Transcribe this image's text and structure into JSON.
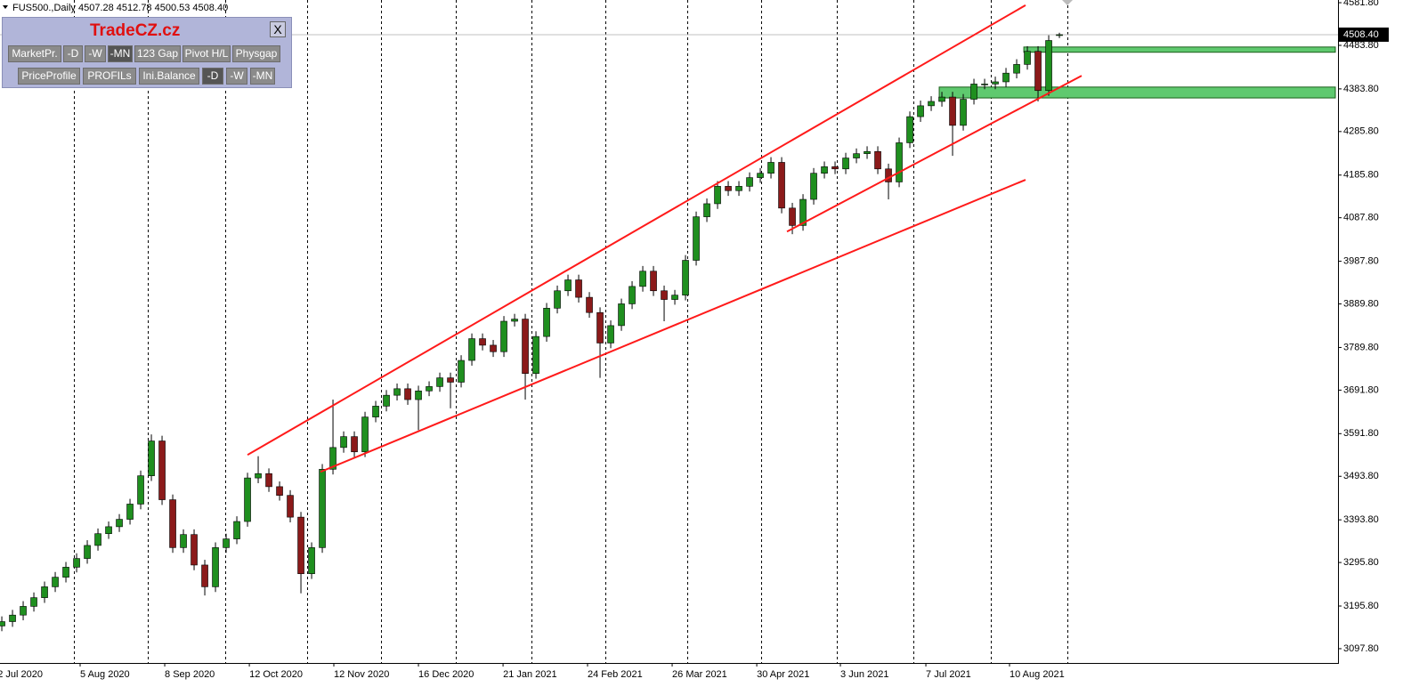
{
  "chart_data": {
    "type": "candlestick",
    "header": "FUS500.,Daily 4507.28 4512.78 4500.53 4508.40",
    "up_color": "#1f8f1f",
    "down_color": "#8b1a1a",
    "x": [
      0,
      1,
      2,
      3,
      4,
      5,
      6,
      7,
      8,
      9,
      10,
      11,
      12,
      13,
      14,
      15,
      16,
      17,
      18,
      19,
      20,
      21,
      22,
      23,
      24,
      25,
      26,
      27,
      28,
      29,
      30,
      31,
      32,
      33,
      34,
      35,
      36,
      37,
      38,
      39,
      40,
      41,
      42,
      43,
      44,
      45,
      46,
      47,
      48,
      49,
      50,
      51,
      52,
      53,
      54,
      55,
      56,
      57,
      58,
      59,
      60,
      61,
      62,
      63,
      64,
      65,
      66,
      67,
      68,
      69,
      70,
      71,
      72,
      73,
      74,
      75,
      76,
      77,
      78,
      79,
      80,
      81,
      82,
      83,
      84,
      85,
      86,
      87,
      88,
      89,
      90,
      91,
      92,
      93,
      94,
      95,
      96,
      97,
      98,
      99
    ],
    "open": [
      3150,
      3160,
      3175,
      3195,
      3215,
      3240,
      3262,
      3285,
      3305,
      3335,
      3362,
      3378,
      3395,
      3430,
      3495,
      3575,
      3440,
      3330,
      3360,
      3290,
      3240,
      3330,
      3350,
      3390,
      3490,
      3500,
      3470,
      3450,
      3400,
      3270,
      3330,
      3510,
      3560,
      3585,
      3550,
      3630,
      3655,
      3680,
      3695,
      3670,
      3690,
      3700,
      3720,
      3710,
      3760,
      3810,
      3795,
      3780,
      3850,
      3855,
      3730,
      3815,
      3880,
      3920,
      3945,
      3905,
      3870,
      3800,
      3840,
      3890,
      3930,
      3965,
      3920,
      3900,
      3910,
      3990,
      4090,
      4120,
      4160,
      4150,
      4160,
      4180,
      4190,
      4215,
      4110,
      4070,
      4130,
      4190,
      4205,
      4200,
      4225,
      4235,
      4240,
      4200,
      4170,
      4260,
      4320,
      4345,
      4355,
      4365,
      4300,
      4360,
      4395,
      4395,
      4400,
      4420,
      4440,
      4470,
      4380,
      4507.28
    ],
    "high": [
      3172,
      3187,
      3207,
      3227,
      3252,
      3274,
      3297,
      3317,
      3347,
      3374,
      3390,
      3407,
      3442,
      3507,
      3590,
      3587,
      3452,
      3372,
      3372,
      3302,
      3342,
      3362,
      3402,
      3502,
      3540,
      3512,
      3482,
      3462,
      3412,
      3342,
      3522,
      3670,
      3597,
      3597,
      3642,
      3667,
      3692,
      3707,
      3707,
      3702,
      3712,
      3732,
      3732,
      3772,
      3822,
      3822,
      3807,
      3862,
      3867,
      3867,
      3827,
      3892,
      3932,
      3957,
      3957,
      3917,
      3882,
      3852,
      3902,
      3942,
      3977,
      3977,
      3932,
      3922,
      4002,
      4102,
      4132,
      4172,
      4172,
      4172,
      4192,
      4202,
      4227,
      4227,
      4122,
      4142,
      4202,
      4217,
      4217,
      4237,
      4247,
      4252,
      4252,
      4212,
      4272,
      4332,
      4357,
      4367,
      4377,
      4377,
      4372,
      4407,
      4407,
      4412,
      4432,
      4452,
      4482,
      4482,
      4507,
      4512.78
    ],
    "low": [
      3138,
      3148,
      3163,
      3183,
      3203,
      3228,
      3250,
      3273,
      3293,
      3323,
      3350,
      3366,
      3383,
      3418,
      3483,
      3428,
      3318,
      3318,
      3278,
      3220,
      3228,
      3318,
      3338,
      3378,
      3478,
      3458,
      3438,
      3388,
      3225,
      3258,
      3318,
      3498,
      3548,
      3538,
      3538,
      3618,
      3643,
      3668,
      3658,
      3600,
      3678,
      3688,
      3650,
      3698,
      3748,
      3783,
      3768,
      3768,
      3838,
      3670,
      3718,
      3803,
      3868,
      3908,
      3893,
      3858,
      3720,
      3788,
      3828,
      3878,
      3918,
      3908,
      3850,
      3888,
      3898,
      3978,
      4078,
      4108,
      4138,
      4138,
      4148,
      4168,
      4178,
      4098,
      4050,
      4058,
      4118,
      4178,
      4188,
      4188,
      4213,
      4223,
      4188,
      4130,
      4158,
      4248,
      4308,
      4333,
      4343,
      4230,
      4288,
      4348,
      4383,
      4383,
      4388,
      4408,
      4428,
      4355,
      4368,
      4500.53
    ],
    "close": [
      3160,
      3175,
      3195,
      3215,
      3240,
      3262,
      3285,
      3305,
      3335,
      3362,
      3378,
      3395,
      3430,
      3495,
      3575,
      3440,
      3330,
      3360,
      3290,
      3240,
      3330,
      3350,
      3390,
      3490,
      3500,
      3470,
      3450,
      3400,
      3270,
      3330,
      3510,
      3560,
      3585,
      3550,
      3630,
      3655,
      3680,
      3695,
      3670,
      3690,
      3700,
      3720,
      3710,
      3760,
      3810,
      3795,
      3780,
      3850,
      3855,
      3730,
      3815,
      3880,
      3920,
      3945,
      3905,
      3870,
      3800,
      3840,
      3890,
      3930,
      3965,
      3920,
      3900,
      3910,
      3990,
      4090,
      4120,
      4160,
      4150,
      4160,
      4180,
      4190,
      4215,
      4110,
      4070,
      4130,
      4190,
      4205,
      4200,
      4225,
      4235,
      4240,
      4200,
      4170,
      4260,
      4320,
      4345,
      4355,
      4365,
      4300,
      4360,
      4395,
      4395,
      4400,
      4420,
      4440,
      4470,
      4380,
      4495,
      4508.4
    ],
    "xlim": [
      -0.17,
      125.08
    ],
    "ylim": [
      3065,
      4588
    ],
    "xticks": [
      {
        "value": -0.4,
        "label": "2 Jul 2020"
      },
      {
        "value": 7.33,
        "label": "5 Aug 2020"
      },
      {
        "value": 15.25,
        "label": "8 Sep 2020"
      },
      {
        "value": 23.17,
        "label": "12 Oct 2020"
      },
      {
        "value": 31.08,
        "label": "12 Nov 2020"
      },
      {
        "value": 39,
        "label": "16 Dec 2020"
      },
      {
        "value": 46.92,
        "label": "21 Jan 2021"
      },
      {
        "value": 54.83,
        "label": "24 Feb 2021"
      },
      {
        "value": 62.75,
        "label": "26 Mar 2021"
      },
      {
        "value": 70.67,
        "label": "30 Apr 2021"
      },
      {
        "value": 78.5,
        "label": "3 Jun 2021"
      },
      {
        "value": 86.5,
        "label": "7 Jul 2021"
      },
      {
        "value": 94.33,
        "label": "10 Aug 2021"
      }
    ],
    "yticks": [
      {
        "value": 4581.8,
        "label": "4581.80"
      },
      {
        "value": 4483.8,
        "label": "4483.80"
      },
      {
        "value": 4383.8,
        "label": "4383.80"
      },
      {
        "value": 4285.8,
        "label": "4285.80"
      },
      {
        "value": 4185.8,
        "label": "4185.80"
      },
      {
        "value": 4087.8,
        "label": "4087.80"
      },
      {
        "value": 3987.8,
        "label": "3987.80"
      },
      {
        "value": 3889.8,
        "label": "3889.80"
      },
      {
        "value": 3789.8,
        "label": "3789.80"
      },
      {
        "value": 3691.8,
        "label": "3691.80"
      },
      {
        "value": 3591.8,
        "label": "3591.80"
      },
      {
        "value": 3493.8,
        "label": "3493.80"
      },
      {
        "value": 3393.8,
        "label": "3393.80"
      },
      {
        "value": 3295.8,
        "label": "3295.80"
      },
      {
        "value": 3195.8,
        "label": "3195.80"
      },
      {
        "value": 3097.8,
        "label": "3097.80"
      }
    ],
    "last_price": {
      "value": 4508.4,
      "label": "4508.40"
    },
    "trendline_color": "#ff1a1a",
    "trendlines": [
      {
        "x": [
          23,
          95.83
        ],
        "y": [
          3543,
          4576
        ]
      },
      {
        "x": [
          29.83,
          95.83
        ],
        "y": [
          3504,
          4175
        ]
      },
      {
        "x": [
          73.5,
          101.08
        ],
        "y": [
          4056,
          4414
        ]
      }
    ],
    "zone_color": "#5fc96f",
    "zones": [
      {
        "x": [
          95.67,
          124.83
        ],
        "y": [
          4468,
          4480
        ]
      },
      {
        "x": [
          87.75,
          124.83
        ],
        "y": [
          4363,
          4388
        ]
      }
    ]
  },
  "panel": {
    "title": "TradeCZ.cz",
    "close": "X",
    "row1": [
      "MarketPr.",
      "-D",
      "-W",
      "-MN",
      "123 Gap",
      "Pivot H/L",
      "Physgap"
    ],
    "row2": [
      "PriceProfile",
      "PROFILs",
      "Ini.Balance",
      "-D",
      "-W",
      "-MN"
    ]
  }
}
